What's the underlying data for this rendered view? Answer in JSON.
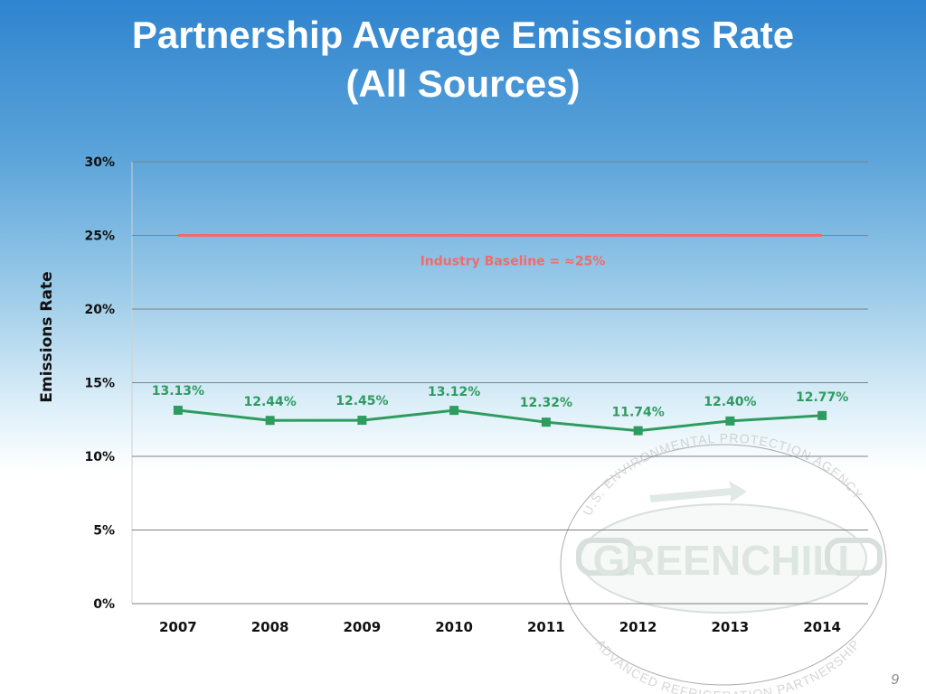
{
  "title": [
    "Partnership Average Emissions Rate",
    "(All Sources)"
  ],
  "page_number": "9",
  "logo": {
    "text_main": "GREENCHILL",
    "text_top": "U.S. ENVIRONMENTAL PROTECTION AGENCY",
    "text_bottom": "ADVANCED REFRIGERATION PARTNERSHIP"
  },
  "colors": {
    "series": "#2e9b5f",
    "baseline": "#f06b6b",
    "grid": "#808080",
    "title": "#ffffff"
  },
  "chart_data": {
    "type": "line",
    "categories": [
      "2007",
      "2008",
      "2009",
      "2010",
      "2011",
      "2012",
      "2013",
      "2014"
    ],
    "series": [
      {
        "values": [
          13.13,
          12.44,
          12.45,
          13.12,
          12.32,
          11.74,
          12.4,
          12.77
        ],
        "labels": [
          "13.13%",
          "12.44%",
          "12.45%",
          "13.12%",
          "12.32%",
          "11.74%",
          "12.40%",
          "12.77%"
        ]
      }
    ],
    "reference_line": {
      "value": 25,
      "label": "Industry Baseline = ≈25%"
    },
    "ylabel": "Emissions Rate",
    "ylim": [
      0,
      30
    ],
    "yticks": [
      0,
      5,
      10,
      15,
      20,
      25,
      30
    ],
    "ytick_labels": [
      "0%",
      "5%",
      "10%",
      "15%",
      "20%",
      "25%",
      "30%"
    ],
    "grid": true,
    "legend": "none"
  }
}
